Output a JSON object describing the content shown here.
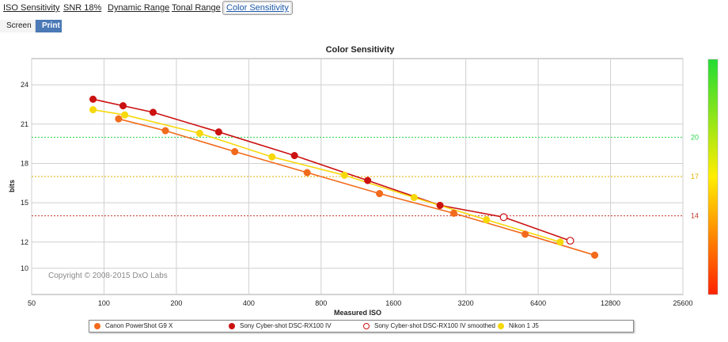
{
  "tabs": [
    "ISO Sensitivity",
    "SNR 18%",
    "Dynamic Range",
    "Tonal Range",
    "Color Sensitivity"
  ],
  "active_tab": "Color Sensitivity",
  "subtabs": [
    "Screen",
    "Print"
  ],
  "active_subtab": "Print",
  "chart_data": {
    "type": "line",
    "title": "Color Sensitivity",
    "xlabel": "Measured ISO",
    "ylabel": "bits",
    "x_scale": "log2",
    "xlim": [
      50,
      25600
    ],
    "ylim": [
      8,
      26
    ],
    "x_ticks": [
      "50",
      "100",
      "200",
      "400",
      "800",
      "1600",
      "3200",
      "6400",
      "12800",
      "25600"
    ],
    "y_ticks": [
      "10",
      "12",
      "15",
      "18",
      "21",
      "24"
    ],
    "grid": true,
    "copyright": "Copyright © 2008-2015 DxO Labs",
    "reference_lines": [
      {
        "value": 20,
        "label": "20",
        "color": "#2bd44a"
      },
      {
        "value": 17,
        "label": "17",
        "color": "#e0b000"
      },
      {
        "value": 14,
        "label": "14",
        "color": "#c0392b"
      }
    ],
    "scale_bar": {
      "colors": [
        "#22dd33",
        "#ffee00",
        "#ff2200"
      ]
    },
    "legend_position": "bottom",
    "series": [
      {
        "name": "Canon PowerShot G9 X",
        "color": "#f26a1b",
        "marker": "filled",
        "x": [
          115,
          180,
          350,
          700,
          1400,
          2850,
          5650,
          11000
        ],
        "y": [
          21.4,
          20.5,
          18.9,
          17.3,
          15.7,
          14.2,
          12.6,
          11.0
        ]
      },
      {
        "name": "Sony Cyber-shot DSC-RX100 IV",
        "color": "#cc1111",
        "marker": "filled",
        "x": [
          90,
          120,
          160,
          300,
          620,
          1250,
          2500
        ],
        "y": [
          22.9,
          22.4,
          21.9,
          20.4,
          18.6,
          16.7,
          14.8
        ]
      },
      {
        "name": "Sony Cyber-shot DSC-RX100 IV smoothed",
        "color": "#cc1111",
        "marker": "hollow",
        "x": [
          2500,
          4600,
          8700
        ],
        "y": [
          14.8,
          13.9,
          12.1
        ]
      },
      {
        "name": "Nikon 1 J5",
        "color": "#f7d80a",
        "marker": "filled",
        "x": [
          90,
          122,
          250,
          500,
          1000,
          1950,
          3900,
          7900
        ],
        "y": [
          22.1,
          21.7,
          20.3,
          18.5,
          17.1,
          15.4,
          13.7,
          12.0
        ]
      }
    ]
  }
}
